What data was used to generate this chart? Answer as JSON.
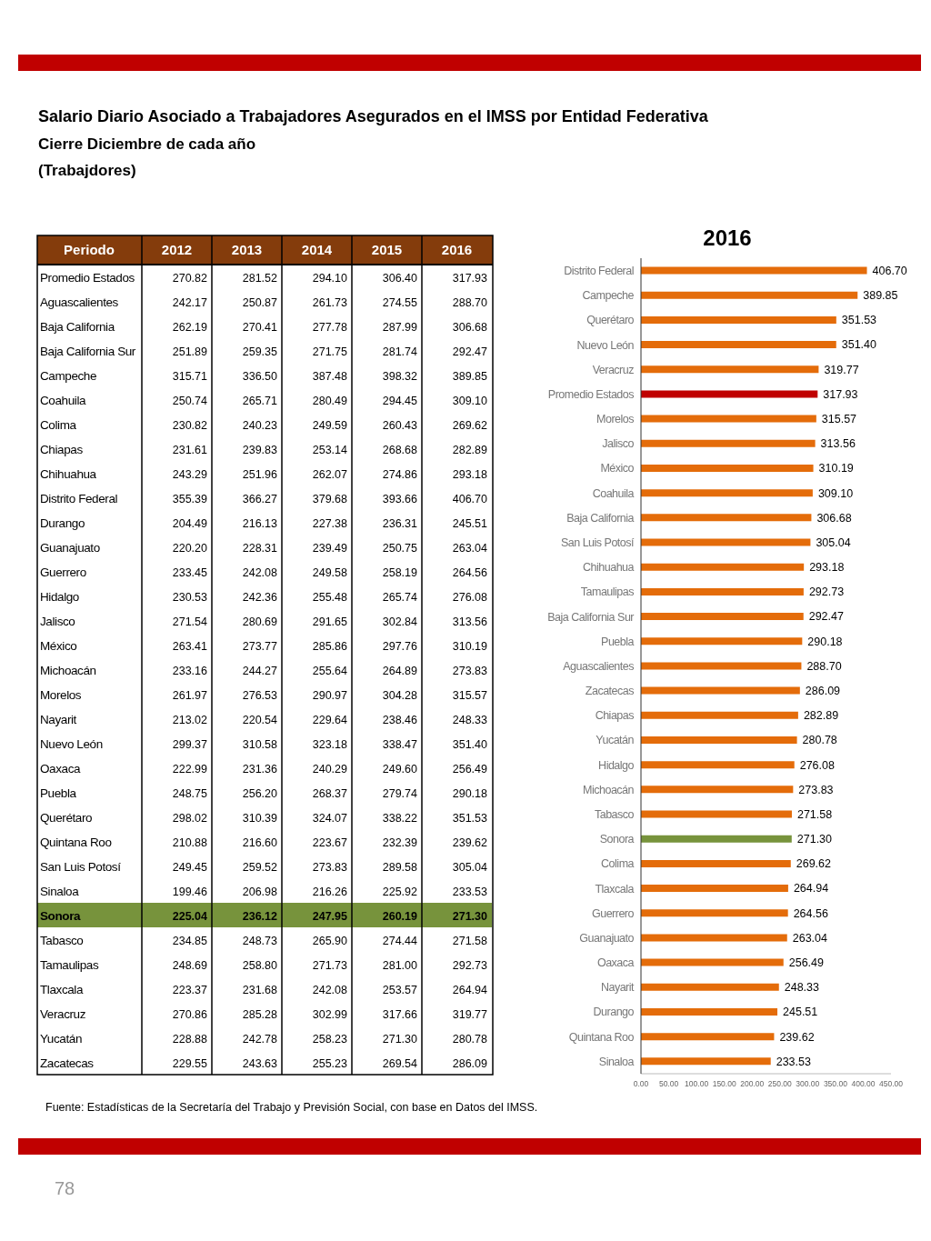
{
  "chart_data": [
    {
      "type": "heatmap",
      "title": "Salario Diario Asociado a Trabajadores Asegurados en el IMSS por Entidad Federativa",
      "subtitle": "Cierre Diciembre de cada año\n(Trabajdores)",
      "ylabel": "Periodo",
      "annotations": [
        "Fuente: Estadísticas de la Secretaría del Trabajo y Previsión Social, con base en Datos del IMSS.",
        "78"
      ],
      "categories": [
        "2012",
        "2013",
        "2014",
        "2015",
        "2016"
      ],
      "y_categories": [
        "Promedio Estados",
        "Aguascalientes",
        "Baja California",
        "Baja California Sur",
        "Campeche",
        "Coahuila",
        "Colima",
        "Chiapas",
        "Chihuahua",
        "Distrito Federal",
        "Durango",
        "Guanajuato",
        "Guerrero",
        "Hidalgo",
        "Jalisco",
        "México",
        "Michoacán",
        "Morelos",
        "Nayarit",
        "Nuevo León",
        "Oaxaca",
        "Puebla",
        "Querétaro",
        "Quintana Roo",
        "San Luis Potosí",
        "Sinaloa",
        "Sonora",
        "Tabasco",
        "Tamaulipas",
        "Tlaxcala",
        "Veracruz",
        "Yucatán",
        "Zacatecas"
      ],
      "colors": [
        null,
        null,
        null,
        null,
        null,
        null,
        null,
        null,
        null,
        null,
        null,
        null,
        null,
        null,
        null,
        null,
        null,
        null,
        null,
        null,
        null,
        null,
        null,
        null,
        null,
        null,
        "#77933c",
        null,
        null,
        null,
        null,
        null,
        null
      ],
      "cells": [
        [
          270.82,
          281.52,
          294.1,
          306.4,
          317.93
        ],
        [
          242.17,
          250.87,
          261.73,
          274.55,
          288.7
        ],
        [
          262.19,
          270.41,
          277.78,
          287.99,
          306.68
        ],
        [
          251.89,
          259.35,
          271.75,
          281.74,
          292.47
        ],
        [
          315.71,
          336.5,
          387.48,
          398.32,
          389.85
        ],
        [
          250.74,
          265.71,
          280.49,
          294.45,
          309.1
        ],
        [
          230.82,
          240.23,
          249.59,
          260.43,
          269.62
        ],
        [
          231.61,
          239.83,
          253.14,
          268.68,
          282.89
        ],
        [
          243.29,
          251.96,
          262.07,
          274.86,
          293.18
        ],
        [
          355.39,
          366.27,
          379.68,
          393.66,
          406.7
        ],
        [
          204.49,
          216.13,
          227.38,
          236.31,
          245.51
        ],
        [
          220.2,
          228.31,
          239.49,
          250.75,
          263.04
        ],
        [
          233.45,
          242.08,
          249.58,
          258.19,
          264.56
        ],
        [
          230.53,
          242.36,
          255.48,
          265.74,
          276.08
        ],
        [
          271.54,
          280.69,
          291.65,
          302.84,
          313.56
        ],
        [
          263.41,
          273.77,
          285.86,
          297.76,
          310.19
        ],
        [
          233.16,
          244.27,
          255.64,
          264.89,
          273.83
        ],
        [
          261.97,
          276.53,
          290.97,
          304.28,
          315.57
        ],
        [
          213.02,
          220.54,
          229.64,
          238.46,
          248.33
        ],
        [
          299.37,
          310.58,
          323.18,
          338.47,
          351.4
        ],
        [
          222.99,
          231.36,
          240.29,
          249.6,
          256.49
        ],
        [
          248.75,
          256.2,
          268.37,
          279.74,
          290.18
        ],
        [
          298.02,
          310.39,
          324.07,
          338.22,
          351.53
        ],
        [
          210.88,
          216.6,
          223.67,
          232.39,
          239.62
        ],
        [
          249.45,
          259.52,
          273.83,
          289.58,
          305.04
        ],
        [
          199.46,
          206.98,
          216.26,
          225.92,
          233.53
        ],
        [
          225.04,
          236.12,
          247.95,
          260.19,
          271.3
        ],
        [
          234.85,
          248.73,
          265.9,
          274.44,
          271.58
        ],
        [
          248.69,
          258.8,
          271.73,
          281.0,
          292.73
        ],
        [
          223.37,
          231.68,
          242.08,
          253.57,
          264.94
        ],
        [
          270.86,
          285.28,
          302.99,
          317.66,
          319.77
        ],
        [
          228.88,
          242.78,
          258.23,
          271.3,
          280.78
        ],
        [
          229.55,
          243.63,
          255.23,
          269.54,
          286.09
        ]
      ],
      "cell_labels": [
        [
          "270.82",
          "281.52",
          "294.10",
          "306.40",
          "317.93"
        ],
        [
          "242.17",
          "250.87",
          "261.73",
          "274.55",
          "288.70"
        ],
        [
          "262.19",
          "270.41",
          "277.78",
          "287.99",
          "306.68"
        ],
        [
          "251.89",
          "259.35",
          "271.75",
          "281.74",
          "292.47"
        ],
        [
          "315.71",
          "336.50",
          "387.48",
          "398.32",
          "389.85"
        ],
        [
          "250.74",
          "265.71",
          "280.49",
          "294.45",
          "309.10"
        ],
        [
          "230.82",
          "240.23",
          "249.59",
          "260.43",
          "269.62"
        ],
        [
          "231.61",
          "239.83",
          "253.14",
          "268.68",
          "282.89"
        ],
        [
          "243.29",
          "251.96",
          "262.07",
          "274.86",
          "293.18"
        ],
        [
          "355.39",
          "366.27",
          "379.68",
          "393.66",
          "406.70"
        ],
        [
          "204.49",
          "216.13",
          "227.38",
          "236.31",
          "245.51"
        ],
        [
          "220.20",
          "228.31",
          "239.49",
          "250.75",
          "263.04"
        ],
        [
          "233.45",
          "242.08",
          "249.58",
          "258.19",
          "264.56"
        ],
        [
          "230.53",
          "242.36",
          "255.48",
          "265.74",
          "276.08"
        ],
        [
          "271.54",
          "280.69",
          "291.65",
          "302.84",
          "313.56"
        ],
        [
          "263.41",
          "273.77",
          "285.86",
          "297.76",
          "310.19"
        ],
        [
          "233.16",
          "244.27",
          "255.64",
          "264.89",
          "273.83"
        ],
        [
          "261.97",
          "276.53",
          "290.97",
          "304.28",
          "315.57"
        ],
        [
          "213.02",
          "220.54",
          "229.64",
          "238.46",
          "248.33"
        ],
        [
          "299.37",
          "310.58",
          "323.18",
          "338.47",
          "351.40"
        ],
        [
          "222.99",
          "231.36",
          "240.29",
          "249.60",
          "256.49"
        ],
        [
          "248.75",
          "256.20",
          "268.37",
          "279.74",
          "290.18"
        ],
        [
          "298.02",
          "310.39",
          "324.07",
          "338.22",
          "351.53"
        ],
        [
          "210.88",
          "216.60",
          "223.67",
          "232.39",
          "239.62"
        ],
        [
          "249.45",
          "259.52",
          "273.83",
          "289.58",
          "305.04"
        ],
        [
          "199.46",
          "206.98",
          "216.26",
          "225.92",
          "233.53"
        ],
        [
          "225.04",
          "236.12",
          "247.95",
          "260.19",
          "271.30"
        ],
        [
          "234.85",
          "248.73",
          "265.90",
          "274.44",
          "271.58"
        ],
        [
          "248.69",
          "258.80",
          "271.73",
          "281.00",
          "292.73"
        ],
        [
          "223.37",
          "231.68",
          "242.08",
          "253.57",
          "264.94"
        ],
        [
          "270.86",
          "285.28",
          "302.99",
          "317.66",
          "319.77"
        ],
        [
          "228.88",
          "242.78",
          "258.23",
          "271.30",
          "280.78"
        ],
        [
          "229.55",
          "243.63",
          "255.23",
          "269.54",
          "286.09"
        ]
      ]
    },
    {
      "type": "bar",
      "orientation": "horizontal",
      "title": "2016",
      "categories": [
        "Distrito Federal",
        "Campeche",
        "Querétaro",
        "Nuevo León",
        "Veracruz",
        "Promedio Estados",
        "Morelos",
        "Jalisco",
        "México",
        "Coahuila",
        "Baja California",
        "San Luis Potosí",
        "Chihuahua",
        "Tamaulipas",
        "Baja California Sur",
        "Puebla",
        "Aguascalientes",
        "Zacatecas",
        "Chiapas",
        "Yucatán",
        "Hidalgo",
        "Michoacán",
        "Tabasco",
        "Sonora",
        "Colima",
        "Tlaxcala",
        "Guerrero",
        "Guanajuato",
        "Oaxaca",
        "Nayarit",
        "Durango",
        "Quintana Roo",
        "Sinaloa"
      ],
      "values": [
        406.7,
        389.85,
        351.53,
        351.4,
        319.77,
        317.93,
        315.57,
        313.56,
        310.19,
        309.1,
        306.68,
        305.04,
        293.18,
        292.73,
        292.47,
        290.18,
        288.7,
        286.09,
        282.89,
        280.78,
        276.08,
        273.83,
        271.58,
        271.3,
        269.62,
        264.94,
        264.56,
        263.04,
        256.49,
        248.33,
        245.51,
        239.62,
        233.53
      ],
      "colors": [
        "#e46c0a",
        "#e46c0a",
        "#e46c0a",
        "#e46c0a",
        "#e46c0a",
        "#c00000",
        "#e46c0a",
        "#e46c0a",
        "#e46c0a",
        "#e46c0a",
        "#e46c0a",
        "#e46c0a",
        "#e46c0a",
        "#e46c0a",
        "#e46c0a",
        "#e46c0a",
        "#e46c0a",
        "#e46c0a",
        "#e46c0a",
        "#e46c0a",
        "#e46c0a",
        "#e46c0a",
        "#e46c0a",
        "#77933c",
        "#e46c0a",
        "#e46c0a",
        "#e46c0a",
        "#e46c0a",
        "#e46c0a",
        "#e46c0a",
        "#e46c0a",
        "#e46c0a",
        "#e46c0a"
      ],
      "value_labels": [
        "406.70",
        "389.85",
        "351.53",
        "351.40",
        "319.77",
        "317.93",
        "315.57",
        "313.56",
        "310.19",
        "309.10",
        "306.68",
        "305.04",
        "293.18",
        "292.73",
        "292.47",
        "290.18",
        "288.70",
        "286.09",
        "282.89",
        "280.78",
        "276.08",
        "273.83",
        "271.58",
        "271.30",
        "269.62",
        "264.94",
        "264.56",
        "263.04",
        "256.49",
        "248.33",
        "245.51",
        "239.62",
        "233.53"
      ],
      "xlim": [
        0,
        450
      ],
      "xticks": [
        {
          "value": 0,
          "label": "0.00"
        },
        {
          "value": 50,
          "label": "50.00"
        },
        {
          "value": 100,
          "label": "100.00"
        },
        {
          "value": 150,
          "label": "150.00"
        },
        {
          "value": 200,
          "label": "200.00"
        },
        {
          "value": 250,
          "label": "250.00"
        },
        {
          "value": 300,
          "label": "300.00"
        },
        {
          "value": 350,
          "label": "350.00"
        },
        {
          "value": 400,
          "label": "400.00"
        },
        {
          "value": 450,
          "label": "450.00"
        }
      ],
      "grid": false,
      "legend": false
    }
  ]
}
